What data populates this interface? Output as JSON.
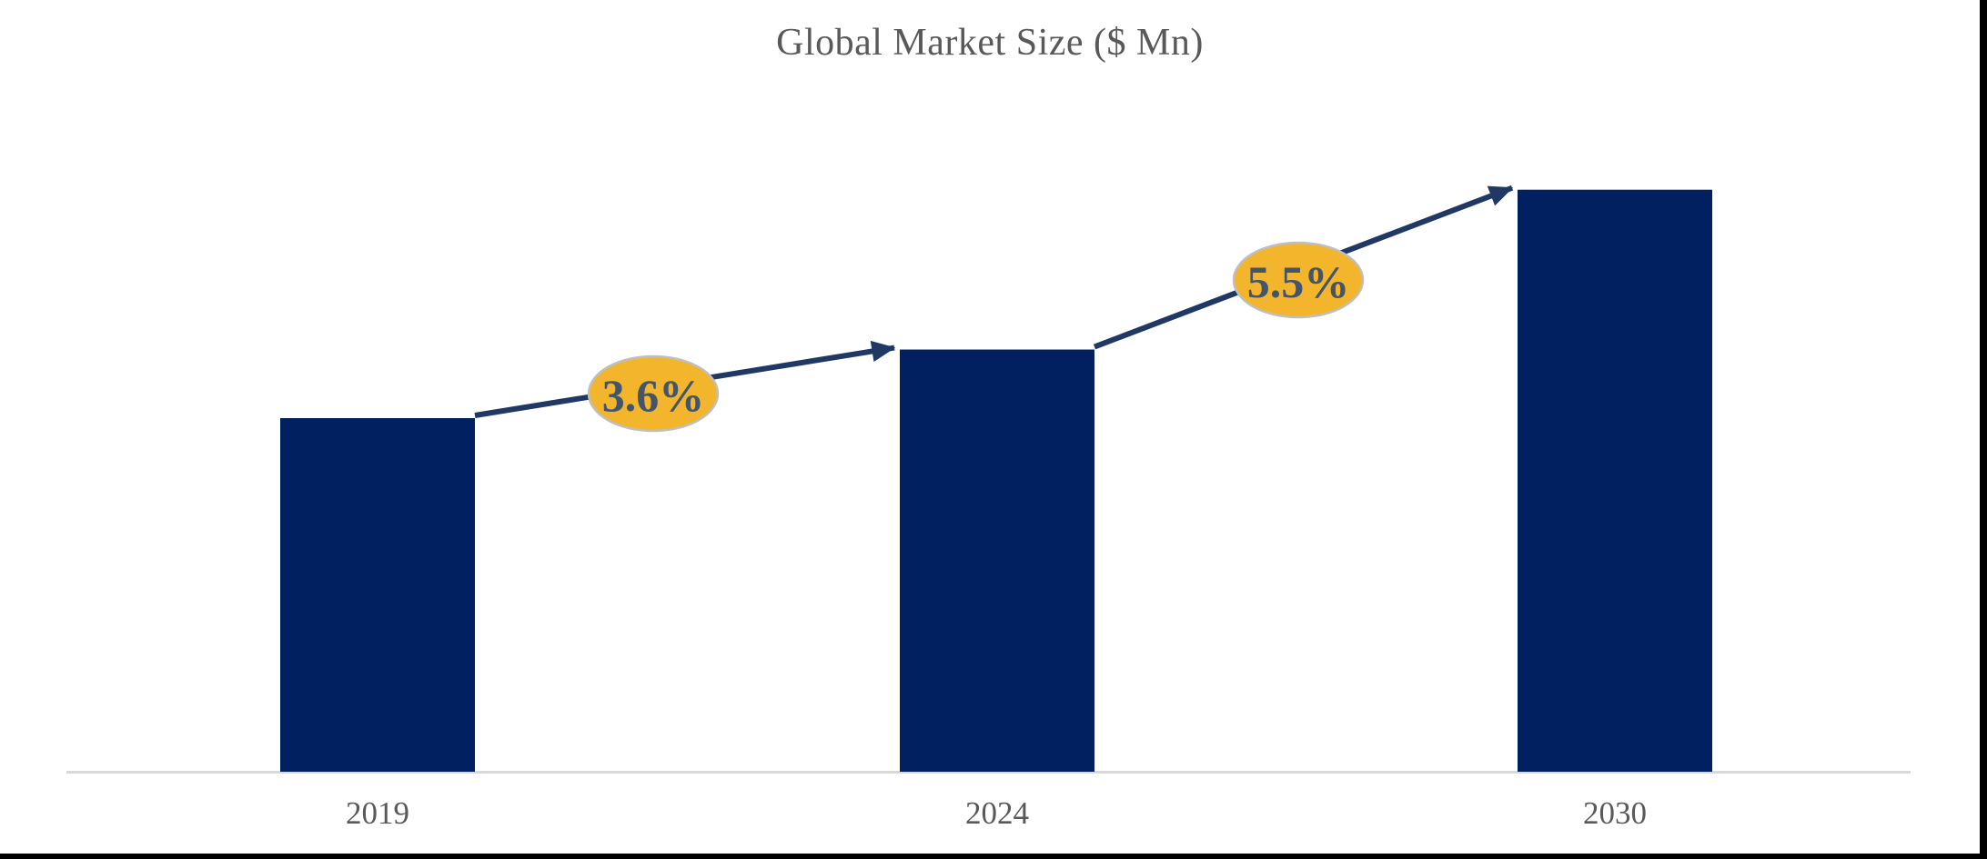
{
  "chart_data": {
    "type": "bar",
    "title": "Global Market Size ($ Mn)",
    "categories": [
      "2019",
      "2024",
      "2030"
    ],
    "series": [
      {
        "name": "Global Market Size",
        "values_relative_estimated": [
          100,
          119.4,
          164.6
        ]
      }
    ],
    "value_axis": {
      "visible": false,
      "gridlines": false,
      "note": "no y-axis ticks shown; values estimated relative to 2019 = 100"
    },
    "annotations": [
      {
        "label": "3.6%",
        "from": "2019",
        "to": "2024"
      },
      {
        "label": "5.5%",
        "from": "2024",
        "to": "2030"
      }
    ],
    "legend": "none"
  },
  "colors": {
    "bar": "#002060",
    "arrow": "#1F3864",
    "badge_fill": "#F2B52B",
    "badge_border": "#BFBFBF",
    "badge_text": "#44546A",
    "title_text": "#595959",
    "axis_label_text": "#595959",
    "axis_line": "#D9D9D9"
  }
}
